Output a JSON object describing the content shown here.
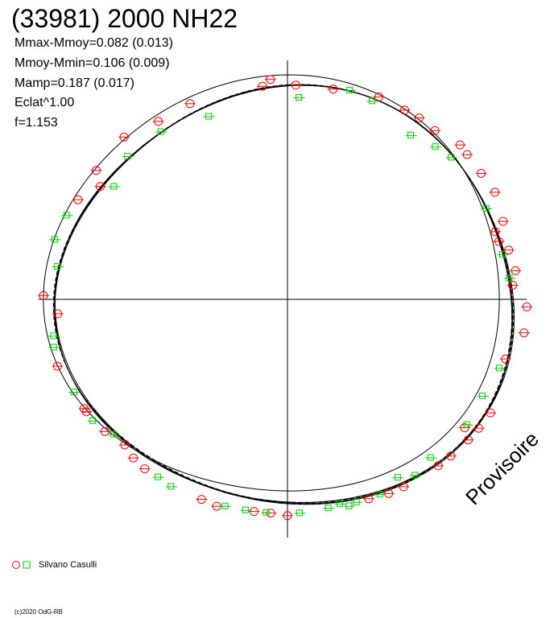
{
  "title": "(33981) 2000 NH22",
  "stats": [
    "Mmax-Mmoy=0.082 (0.013)",
    "Mmoy-Mmin=0.106 (0.009)",
    "Mamp=0.187 (0.017)",
    "Eclat^1.00",
    "f=1.153"
  ],
  "legend": {
    "label": "Silvano Casulli",
    "colors": [
      "#ff0000",
      "#00cc00"
    ]
  },
  "copyright": "(c)2020 OdG-RB",
  "watermark": "Provisoire",
  "chart_data": {
    "type": "scatter",
    "projection": "polar",
    "series": [
      {
        "name": "Silvano Casulli",
        "marker": "circle",
        "color": "#ff0000",
        "points": [
          [
            92,
            1.04
          ],
          [
            99,
            1.04
          ],
          [
            107,
            0.99
          ],
          [
            122,
            1.04
          ],
          [
            127,
            1.04
          ],
          [
            129,
            0.99
          ],
          [
            131,
            1.04
          ],
          [
            137,
            1.04
          ],
          [
            141,
            1.04
          ],
          [
            151,
            1.04
          ],
          [
            155,
            1.04
          ],
          [
            160,
            1.03
          ],
          [
            180,
            1.05
          ],
          [
            184,
            1.04
          ],
          [
            188,
            1.04
          ],
          [
            197,
            1.05
          ],
          [
            201,
            1.04
          ],
          [
            217,
            1.03
          ],
          [
            221,
            1.02
          ],
          [
            225,
            1.0
          ],
          [
            231,
            1.02
          ],
          [
            238,
            1.03
          ],
          [
            239,
            1.03
          ],
          [
            252,
            1.05
          ],
          [
            266,
            1.0
          ],
          [
            271,
            1.06
          ],
          [
            298,
            1.03
          ],
          [
            304,
            0.98
          ],
          [
            307,
            1.04
          ],
          [
            318,
            1.06
          ],
          [
            327,
            1.03
          ],
          [
            336,
            1.04
          ],
          [
            354,
            1.04
          ],
          [
            356,
            1.07
          ],
          [
            2,
            1.04
          ],
          [
            11,
            1.04
          ],
          [
            22,
            1.06
          ],
          [
            29,
            1.05
          ],
          [
            33,
            1.05
          ],
          [
            38,
            1.04
          ],
          [
            45,
            1.06
          ],
          [
            48,
            1.05
          ],
          [
            54,
            1.04
          ],
          [
            60,
            1.04
          ],
          [
            68,
            1.01
          ],
          [
            70,
            0.96
          ],
          [
            73,
            0.96
          ],
          [
            76,
            0.99
          ],
          [
            82,
            1.0
          ],
          [
            86,
            0.98
          ]
        ]
      },
      {
        "name": "Silvano Casulli",
        "marker": "square",
        "color": "#00cc00",
        "points": [
          [
            77,
            0.96
          ],
          [
            110,
            0.98
          ],
          [
            119,
            0.97
          ],
          [
            128,
            0.99
          ],
          [
            141,
            0.99
          ],
          [
            147,
            1.02
          ],
          [
            151,
            0.99
          ],
          [
            157,
            1.03
          ],
          [
            163,
            1.03
          ],
          [
            165,
            1.04
          ],
          [
            167,
            1.02
          ],
          [
            170,
            1.03
          ],
          [
            177,
            1.04
          ],
          [
            185,
            1.04
          ],
          [
            190,
            1.04
          ],
          [
            195,
            1.04
          ],
          [
            209,
            1.04
          ],
          [
            213,
            1.03
          ],
          [
            229,
            1.0
          ],
          [
            235,
            1.03
          ],
          [
            244,
            1.03
          ],
          [
            257,
            1.04
          ],
          [
            260,
            1.03
          ],
          [
            279,
            1.01
          ],
          [
            286,
            1.05
          ],
          [
            293,
            1.04
          ],
          [
            306,
            0.93
          ],
          [
            315,
            0.98
          ],
          [
            326,
            0.98
          ],
          [
            339,
            0.95
          ],
          [
            3,
            0.98
          ],
          [
            15,
            1.05
          ],
          [
            21,
            1.03
          ],
          [
            34,
            0.96
          ],
          [
            41,
            0.98
          ],
          [
            46,
            0.99
          ],
          [
            63,
            0.97
          ],
          [
            84,
            0.97
          ]
        ]
      }
    ],
    "curves": [
      {
        "style": "solid",
        "coefficients": [
          [
            0.006,
            0.004
          ],
          [
            0.01,
            -0.004
          ],
          [
            0.02,
            0.023
          ],
          [
            0.004,
            0.002
          ]
        ]
      },
      {
        "style": "solid",
        "coefficients": [
          [
            0.005,
            0.006
          ],
          [
            0.008,
            -0.002
          ],
          [
            0.022,
            0.02
          ],
          [
            0.003,
            0.003
          ]
        ]
      },
      {
        "style": "dashed",
        "coefficients": [
          [
            0.006,
            0.003
          ],
          [
            0.011,
            -0.005
          ],
          [
            0.019,
            0.025
          ],
          [
            0.005,
            0.001
          ]
        ]
      },
      {
        "style": "dashed",
        "coefficients": [
          [
            0.007,
            0.005
          ],
          [
            0.009,
            -0.003
          ],
          [
            0.021,
            0.021
          ],
          [
            0.004,
            0.002
          ]
        ]
      },
      {
        "style": "solid",
        "coefficients": [
          [
            0.004,
            0.005
          ],
          [
            0.012,
            -0.006
          ],
          [
            0.018,
            0.024
          ],
          [
            0.002,
            0.004
          ]
        ]
      },
      {
        "style": "solid",
        "coefficients": [
          [
            0.06,
            -0.05
          ],
          [
            0.01,
            0.0
          ],
          [
            0.02,
            0.02
          ],
          [
            0.0,
            0.0
          ]
        ]
      }
    ]
  }
}
